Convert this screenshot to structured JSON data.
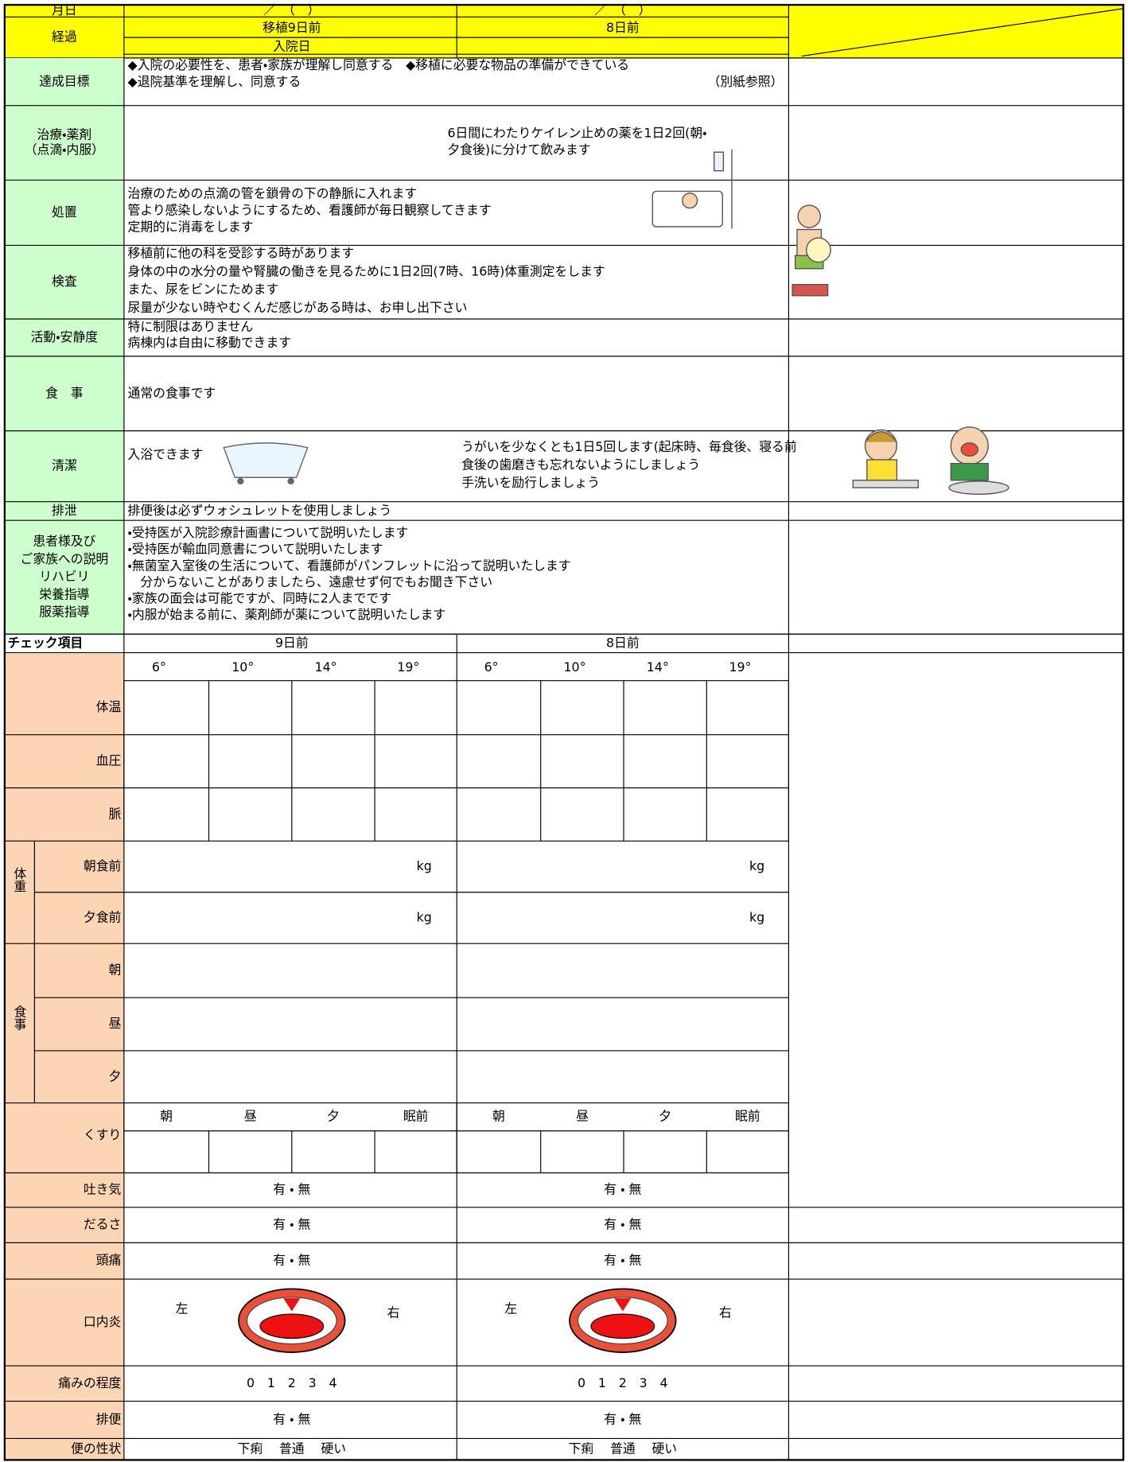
{
  "header": {
    "date_label": "月日",
    "date_day1": "／　（　）",
    "date_day2": "／　（　）",
    "course_label": "経過",
    "course_day1": "移植9日前",
    "course_day1_sub": "入院日",
    "course_day2": "8日前"
  },
  "plan": [
    {
      "label": [
        "達成目標"
      ],
      "text": [
        "◆入院の必要性を、患者・家族が理解し同意する　◆移植に必要な物品の準備ができている",
        "◆退院基準を理解し、同意する"
      ],
      "note": "（別紙参照）"
    },
    {
      "label": [
        "治療・薬剤",
        "（点滴・内服）"
      ],
      "text2": [
        "6日間にわたりケイレン止めの薬を1日2回(朝・",
        "夕食後)に分けて飲みます"
      ]
    },
    {
      "label": [
        "処置"
      ],
      "text": [
        "治療のための点滴の管を鎖骨の下の静脈に入れます",
        "管より感染しないようにするため、看護師が毎日観察してきます",
        "定期的に消毒をします"
      ]
    },
    {
      "label": [
        "検査"
      ],
      "text": [
        "移植前に他の科を受診する時があります",
        "身体の中の水分の量や腎臓の働きを見るために1日2回(7時、16時)体重測定をします",
        "また、尿をビンにためます",
        "尿量が少ない時やむくんだ感じがある時は、お申し出下さい"
      ]
    },
    {
      "label": [
        "活動・安静度"
      ],
      "text": [
        "特に制限はありません",
        "病棟内は自由に移動できます"
      ]
    },
    {
      "label": [
        "食　事"
      ],
      "text": [
        "通常の食事です"
      ]
    },
    {
      "label": [
        "清潔"
      ],
      "text": [
        "入浴できます"
      ],
      "text2": [
        "うがいを少なくとも1日5回します(起床時、毎食後、寝る前",
        "食後の歯磨きも忘れないようにしましょう",
        "手洗いを励行しましょう"
      ]
    },
    {
      "label": [
        "排泄"
      ],
      "text": [
        "排便後は必ずウォシュレットを使用しましょう"
      ]
    },
    {
      "label": [
        "患者様及び",
        "ご家族への説明",
        "リハビリ",
        "栄養指導",
        "服薬指導"
      ],
      "text": [
        "・受持医が入院診療計画書について説明いたします",
        "・受持医が輸血同意書について説明いたします",
        "・無菌室入室後の生活について、看護師がパンフレットに沿って説明いたします",
        "　分からないことがありましたら、遠慮せず何でもお聞き下さい",
        "・家族の面会は可能ですが、同時に2人までです",
        "・内服が始まる前に、薬剤師が薬について説明いたします"
      ]
    }
  ],
  "check": {
    "title": "チェック項目",
    "days": [
      "9日前",
      "8日前"
    ],
    "times": [
      [
        "6°",
        "10°",
        "14°",
        "19°"
      ],
      [
        "6°",
        "10°",
        "14°",
        "19°"
      ]
    ],
    "vitals": [
      "体温",
      "血圧",
      "脈"
    ],
    "weight": {
      "label": "体重",
      "rows": [
        "朝食前",
        "夕食前"
      ],
      "units": [
        [
          "kg",
          "kg"
        ],
        [
          "kg",
          "kg"
        ]
      ]
    },
    "meals": {
      "label": "食事",
      "rows": [
        "朝",
        "昼",
        "夕"
      ]
    },
    "medicine": {
      "label": "くすり",
      "slots": [
        [
          "朝",
          "昼",
          "夕",
          "眠前"
        ],
        [
          "朝",
          "昼",
          "夕",
          "眠前"
        ]
      ]
    },
    "lower": [
      {
        "label": "吐き気",
        "texts": [
          "有 ・ 無",
          "有 ・ 無"
        ]
      },
      {
        "label": "だるさ",
        "texts": [
          "有 ・ 無",
          "有 ・ 無"
        ]
      },
      {
        "label": "頭痛",
        "texts": [
          "有 ・ 無",
          "有 ・ 無"
        ]
      },
      {
        "label": "口内炎",
        "left": [
          "左",
          "左"
        ],
        "right": [
          "右",
          "右"
        ]
      },
      {
        "label": "痛みの程度",
        "texts": [
          "0　1　2　3　4",
          "0　1　2　3　4"
        ]
      },
      {
        "label": "排便",
        "texts": [
          "有 ・ 無",
          "有 ・ 無"
        ]
      },
      {
        "label": "便の性状",
        "texts": [
          "下痢　 普通　 硬い",
          "下痢　 普通　 硬い"
        ]
      }
    ]
  }
}
